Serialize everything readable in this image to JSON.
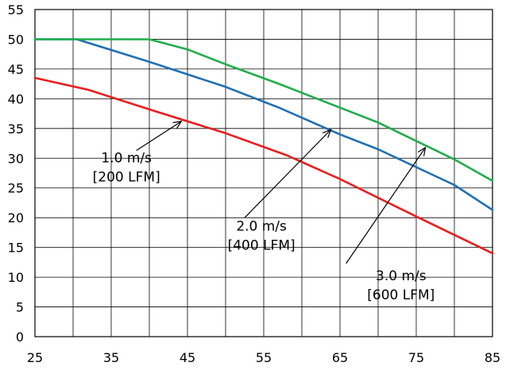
{
  "chart_data": {
    "type": "line",
    "title": "",
    "xlabel": "",
    "ylabel": "",
    "xlim": [
      25,
      85
    ],
    "ylim": [
      0,
      55
    ],
    "x_ticks": [
      25,
      35,
      45,
      55,
      65,
      75,
      85
    ],
    "x_tick_labels": [
      "25",
      "35",
      "45",
      "55",
      "65",
      "75",
      "85"
    ],
    "x_minor_grid_step": 5,
    "y_ticks": [
      0,
      5,
      10,
      15,
      20,
      25,
      30,
      35,
      40,
      45,
      50,
      55
    ],
    "y_tick_labels": [
      "0",
      "5",
      "10",
      "15",
      "20",
      "25",
      "30",
      "35",
      "40",
      "45",
      "50",
      "55"
    ],
    "grid": true,
    "series": [
      {
        "name": "1.0 m/s [200 LFM]",
        "color": "#ee1c1c",
        "x": [
          25,
          32,
          40,
          50,
          58,
          65,
          75,
          85
        ],
        "y": [
          43.5,
          41.5,
          38.2,
          34.2,
          30.5,
          26.5,
          20.2,
          14.0
        ]
      },
      {
        "name": "2.0 m/s [400 LFM]",
        "color": "#1f6fb5",
        "x": [
          25,
          30.5,
          40,
          50,
          57,
          65,
          70,
          80,
          85
        ],
        "y": [
          50,
          50,
          46.2,
          42.0,
          38.5,
          34.0,
          31.5,
          25.5,
          21.3
        ]
      },
      {
        "name": "3.0 m/s [600 LFM]",
        "color": "#1fae4b",
        "x": [
          25,
          40,
          45,
          50,
          57,
          65,
          70,
          80,
          85
        ],
        "y": [
          50,
          50,
          48.3,
          45.8,
          42.5,
          38.5,
          36.0,
          29.8,
          26.2
        ]
      }
    ],
    "annotations": [
      {
        "series": 0,
        "line1": "1.0 m/s",
        "line2": "[200 LFM]",
        "text_at": [
          37,
          29.3
        ],
        "arrow_from": [
          38.3,
          31.3
        ],
        "arrow_to": [
          44.2,
          36.2
        ]
      },
      {
        "series": 1,
        "line1": "2.0 m/s",
        "line2": "[400 LFM]",
        "text_at": [
          54.7,
          17.8
        ],
        "arrow_from": [
          52.5,
          20.0
        ],
        "arrow_to": [
          63.8,
          34.8
        ]
      },
      {
        "series": 2,
        "line1": "3.0 m/s",
        "line2": "[600 LFM]",
        "text_at": [
          73.0,
          9.5
        ],
        "arrow_from": [
          65.8,
          12.3
        ],
        "arrow_to": [
          76.2,
          31.8
        ]
      }
    ]
  }
}
